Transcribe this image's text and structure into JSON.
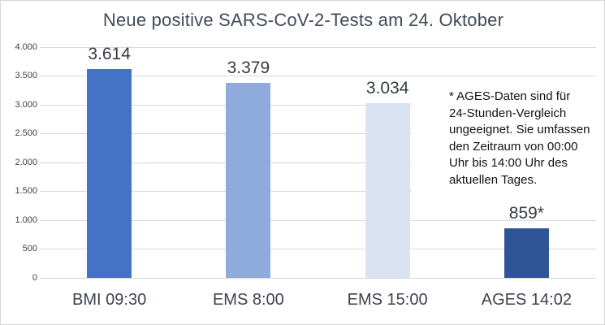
{
  "chart_data": {
    "type": "bar",
    "title": "Neue positive SARS-CoV-2-Tests am 24. Oktober",
    "categories": [
      "BMI 09:30",
      "EMS 8:00",
      "EMS 15:00",
      "AGES 14:02"
    ],
    "values": [
      3614,
      3379,
      3034,
      859
    ],
    "data_labels": [
      "3.614",
      "3.379",
      "3.034",
      "859*"
    ],
    "bar_colors": [
      "#4472C4",
      "#8FAADC",
      "#DAE3F3",
      "#2F5597"
    ],
    "xlabel": "",
    "ylabel": "",
    "ylim": [
      0,
      4000
    ],
    "ytick_interval": 500,
    "ytick_labels": [
      "0",
      "500",
      "1.000",
      "1.500",
      "2.000",
      "2.500",
      "3.000",
      "3.500",
      "4.000"
    ],
    "grid": true,
    "legend": "none",
    "annotation": {
      "lines": [
        "* AGES-Daten sind für",
        "24-Stunden-Vergleich",
        "ungeeignet. Sie umfassen",
        "den Zeitraum von 00:00",
        "Uhr bis 14:00 Uhr des",
        "aktuellen Tages."
      ]
    }
  },
  "colors": {
    "gridline": "#d9d9d9",
    "title_text": "#414b59",
    "axis_text": "#404040",
    "data_label_text": "#363b44",
    "background": "#ffffff"
  }
}
